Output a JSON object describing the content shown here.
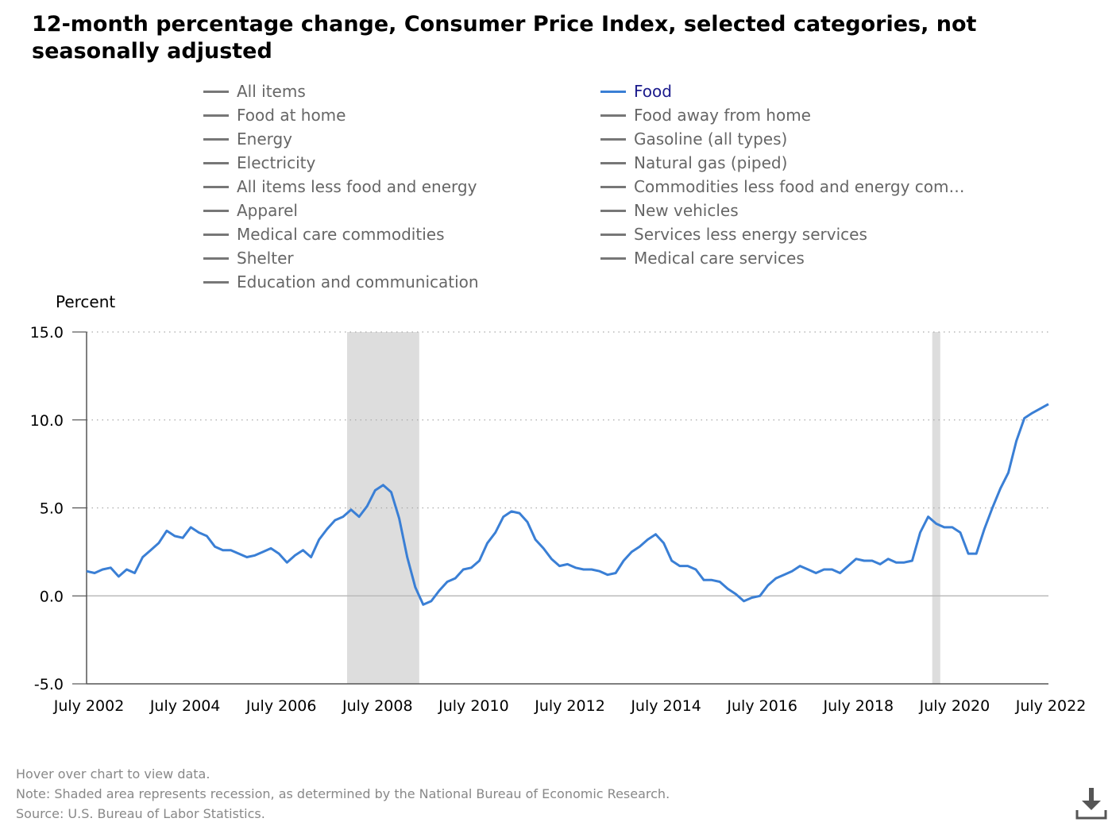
{
  "title": "12-month percentage change, Consumer Price Index, selected categories, not seasonally adjusted",
  "legend": {
    "items": [
      {
        "label": "All items",
        "active": false
      },
      {
        "label": "Food",
        "active": true
      },
      {
        "label": "Food at home",
        "active": false
      },
      {
        "label": "Food away from home",
        "active": false
      },
      {
        "label": "Energy",
        "active": false
      },
      {
        "label": "Gasoline (all types)",
        "active": false
      },
      {
        "label": "Electricity",
        "active": false
      },
      {
        "label": "Natural gas (piped)",
        "active": false
      },
      {
        "label": "All items less food and energy",
        "active": false
      },
      {
        "label": "Commodities less food and energy com…",
        "active": false
      },
      {
        "label": "Apparel",
        "active": false
      },
      {
        "label": "New vehicles",
        "active": false
      },
      {
        "label": "Medical care commodities",
        "active": false
      },
      {
        "label": "Services less energy services",
        "active": false
      },
      {
        "label": "Shelter",
        "active": false
      },
      {
        "label": "Medical care services",
        "active": false
      },
      {
        "label": "Education and communication",
        "active": false
      }
    ]
  },
  "colors": {
    "active_series": "#3a7fd5",
    "inactive_legend": "#777777",
    "recession_shade": "#dddddd"
  },
  "chart_data": {
    "type": "line",
    "ylabel": "Percent",
    "ylim": [
      -5,
      15
    ],
    "y_ticks": [
      "15.0",
      "10.0",
      "5.0",
      "0.0",
      "-5.0"
    ],
    "y_tick_values": [
      15,
      10,
      5,
      0,
      -5
    ],
    "x_tick_labels": [
      "July 2002",
      "July 2004",
      "July 2006",
      "July 2008",
      "July 2010",
      "July 2012",
      "July 2014",
      "July 2016",
      "July 2018",
      "July 2020",
      "July 2022"
    ],
    "x_range": [
      "2002-07",
      "2022-07"
    ],
    "grid": "horizontal dotted",
    "recessions": [
      {
        "start": "2007-12",
        "end": "2009-06"
      },
      {
        "start": "2020-02",
        "end": "2020-04"
      }
    ],
    "series": [
      {
        "name": "Food",
        "points": [
          [
            "2002-07",
            1.4
          ],
          [
            "2002-09",
            1.3
          ],
          [
            "2002-11",
            1.5
          ],
          [
            "2003-01",
            1.6
          ],
          [
            "2003-03",
            1.1
          ],
          [
            "2003-05",
            1.5
          ],
          [
            "2003-07",
            1.3
          ],
          [
            "2003-09",
            2.2
          ],
          [
            "2003-11",
            2.6
          ],
          [
            "2004-01",
            3.0
          ],
          [
            "2004-03",
            3.7
          ],
          [
            "2004-05",
            3.4
          ],
          [
            "2004-07",
            3.3
          ],
          [
            "2004-09",
            3.9
          ],
          [
            "2004-11",
            3.6
          ],
          [
            "2005-01",
            3.4
          ],
          [
            "2005-03",
            2.8
          ],
          [
            "2005-05",
            2.6
          ],
          [
            "2005-07",
            2.6
          ],
          [
            "2005-09",
            2.4
          ],
          [
            "2005-11",
            2.2
          ],
          [
            "2006-01",
            2.3
          ],
          [
            "2006-03",
            2.5
          ],
          [
            "2006-05",
            2.7
          ],
          [
            "2006-07",
            2.4
          ],
          [
            "2006-09",
            1.9
          ],
          [
            "2006-11",
            2.3
          ],
          [
            "2007-01",
            2.6
          ],
          [
            "2007-03",
            2.2
          ],
          [
            "2007-05",
            3.2
          ],
          [
            "2007-07",
            3.8
          ],
          [
            "2007-09",
            4.3
          ],
          [
            "2007-11",
            4.5
          ],
          [
            "2008-01",
            4.9
          ],
          [
            "2008-03",
            4.5
          ],
          [
            "2008-05",
            5.1
          ],
          [
            "2008-07",
            6.0
          ],
          [
            "2008-09",
            6.3
          ],
          [
            "2008-11",
            5.9
          ],
          [
            "2009-01",
            4.4
          ],
          [
            "2009-03",
            2.2
          ],
          [
            "2009-05",
            0.5
          ],
          [
            "2009-07",
            -0.5
          ],
          [
            "2009-09",
            -0.3
          ],
          [
            "2009-11",
            0.3
          ],
          [
            "2010-01",
            0.8
          ],
          [
            "2010-03",
            1.0
          ],
          [
            "2010-05",
            1.5
          ],
          [
            "2010-07",
            1.6
          ],
          [
            "2010-09",
            2.0
          ],
          [
            "2010-11",
            3.0
          ],
          [
            "2011-01",
            3.6
          ],
          [
            "2011-03",
            4.5
          ],
          [
            "2011-05",
            4.8
          ],
          [
            "2011-07",
            4.7
          ],
          [
            "2011-09",
            4.2
          ],
          [
            "2011-11",
            3.2
          ],
          [
            "2012-01",
            2.7
          ],
          [
            "2012-03",
            2.1
          ],
          [
            "2012-05",
            1.7
          ],
          [
            "2012-07",
            1.8
          ],
          [
            "2012-09",
            1.6
          ],
          [
            "2012-11",
            1.5
          ],
          [
            "2013-01",
            1.5
          ],
          [
            "2013-03",
            1.4
          ],
          [
            "2013-05",
            1.2
          ],
          [
            "2013-07",
            1.3
          ],
          [
            "2013-09",
            2.0
          ],
          [
            "2013-11",
            2.5
          ],
          [
            "2014-01",
            2.8
          ],
          [
            "2014-03",
            3.2
          ],
          [
            "2014-05",
            3.5
          ],
          [
            "2014-07",
            3.0
          ],
          [
            "2014-09",
            2.0
          ],
          [
            "2014-11",
            1.7
          ],
          [
            "2015-01",
            1.7
          ],
          [
            "2015-03",
            1.5
          ],
          [
            "2015-05",
            0.9
          ],
          [
            "2015-07",
            0.9
          ],
          [
            "2015-09",
            0.8
          ],
          [
            "2015-11",
            0.4
          ],
          [
            "2016-01",
            0.1
          ],
          [
            "2016-03",
            -0.3
          ],
          [
            "2016-05",
            -0.1
          ],
          [
            "2016-07",
            0.0
          ],
          [
            "2016-09",
            0.6
          ],
          [
            "2016-11",
            1.0
          ],
          [
            "2017-01",
            1.2
          ],
          [
            "2017-03",
            1.4
          ],
          [
            "2017-05",
            1.7
          ],
          [
            "2017-07",
            1.5
          ],
          [
            "2017-09",
            1.3
          ],
          [
            "2017-11",
            1.5
          ],
          [
            "2018-01",
            1.5
          ],
          [
            "2018-03",
            1.3
          ],
          [
            "2018-05",
            1.7
          ],
          [
            "2018-07",
            2.1
          ],
          [
            "2018-09",
            2.0
          ],
          [
            "2018-11",
            2.0
          ],
          [
            "2019-01",
            1.8
          ],
          [
            "2019-03",
            2.1
          ],
          [
            "2019-05",
            1.9
          ],
          [
            "2019-07",
            1.9
          ],
          [
            "2019-09",
            2.0
          ],
          [
            "2019-11",
            3.6
          ],
          [
            "2020-01",
            4.5
          ],
          [
            "2020-03",
            4.1
          ],
          [
            "2020-05",
            3.9
          ],
          [
            "2020-07",
            3.9
          ],
          [
            "2020-09",
            3.6
          ],
          [
            "2020-11",
            2.4
          ],
          [
            "2021-01",
            2.4
          ],
          [
            "2021-03",
            3.8
          ],
          [
            "2021-05",
            5.0
          ],
          [
            "2021-07",
            6.1
          ],
          [
            "2021-09",
            7.0
          ],
          [
            "2021-11",
            8.8
          ],
          [
            "2022-01",
            10.1
          ],
          [
            "2022-03",
            10.4
          ],
          [
            "2022-07",
            10.9
          ]
        ]
      }
    ]
  },
  "footnotes": {
    "hover": "Hover over chart to view data.",
    "note": "Note: Shaded area represents recession, as determined by the National Bureau of Economic Research.",
    "source": "Source: U.S. Bureau of Labor Statistics."
  },
  "download": {
    "icon": "download-icon"
  }
}
